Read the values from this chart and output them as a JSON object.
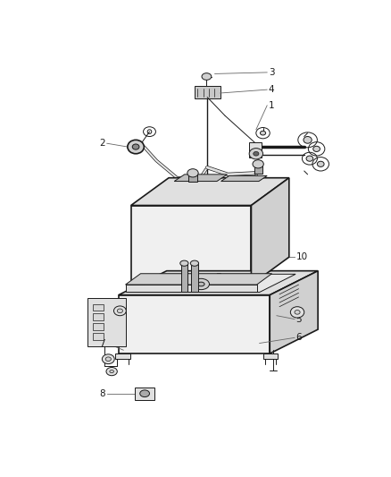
{
  "bg_color": "#ffffff",
  "line_color": "#1a1a1a",
  "gray_fill": "#f0f0f0",
  "gray_dark": "#d0d0d0",
  "gray_mid": "#e0e0e0",
  "fig_width": 4.38,
  "fig_height": 5.33,
  "dpi": 100,
  "label_fontsize": 7.5,
  "lw_main": 1.2,
  "lw_thin": 0.7,
  "lw_label": 0.6
}
